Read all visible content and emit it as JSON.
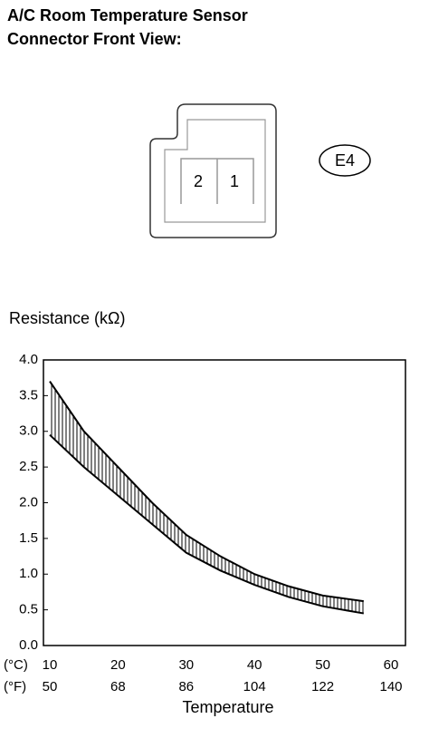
{
  "title_lines": [
    "A/C Room Temperature Sensor",
    "Connector Front View:"
  ],
  "connector": {
    "pins": [
      "2",
      "1"
    ],
    "code": "E4"
  },
  "chart_data": {
    "type": "line",
    "y_label": "Resistance (kΩ)",
    "x_label": "Temperature",
    "x_unit_c": "(°C)",
    "x_unit_f": "(°F)",
    "x": [
      10,
      15,
      20,
      25,
      30,
      35,
      40,
      45,
      50,
      56
    ],
    "series": [
      {
        "color": "#000000",
        "values": [
          3.7,
          3.0,
          2.5,
          2.0,
          1.55,
          1.25,
          1.0,
          0.83,
          0.7,
          0.62
        ]
      },
      {
        "color": "#000000",
        "values": [
          2.95,
          2.5,
          2.1,
          1.7,
          1.3,
          1.05,
          0.85,
          0.68,
          0.55,
          0.45
        ]
      }
    ],
    "xlim": [
      10,
      60
    ],
    "xticks": [
      10,
      20,
      30,
      40,
      50,
      60
    ],
    "fahrenheit_ticks": [
      50,
      68,
      86,
      104,
      122,
      140
    ],
    "ylim": [
      0,
      4
    ],
    "yticks": [
      {
        "value": 0,
        "label": "0.0"
      },
      {
        "value": 0.5,
        "label": "0.5"
      },
      {
        "value": 1,
        "label": "1.0"
      },
      {
        "value": 1.5,
        "label": "1.5"
      },
      {
        "value": 2,
        "label": "2.0"
      },
      {
        "value": 2.5,
        "label": "2.5"
      },
      {
        "value": 3,
        "label": "3.0"
      },
      {
        "value": 3.5,
        "label": "3.5"
      },
      {
        "value": 4,
        "label": "4.0"
      }
    ],
    "band_hatched": true
  }
}
